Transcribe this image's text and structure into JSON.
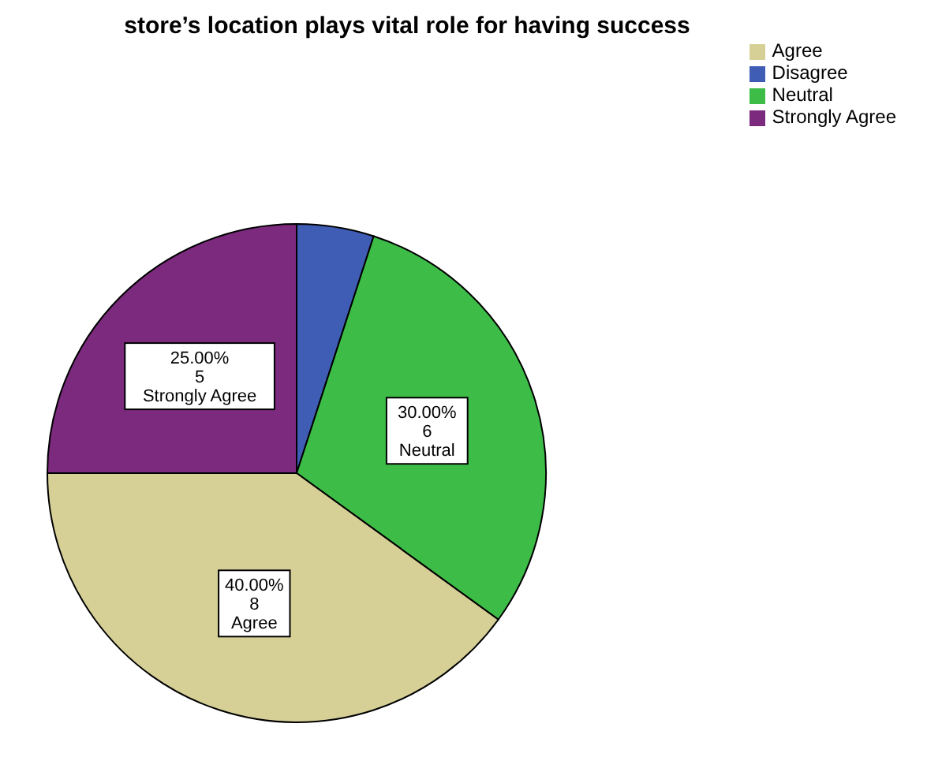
{
  "chart_data": {
    "type": "pie",
    "title": "store’s location plays vital role for having success",
    "categories": [
      "Disagree",
      "Neutral",
      "Agree",
      "Strongly Agree"
    ],
    "values": [
      1,
      6,
      8,
      5
    ],
    "colors": [
      "#3f5db5",
      "#3dbd48",
      "#d6d097",
      "#7c2a7e"
    ],
    "value_labels": [
      null,
      "30.00%\n6",
      "40.00%\n8",
      "25.00%\n5"
    ],
    "legend": "top right"
  }
}
